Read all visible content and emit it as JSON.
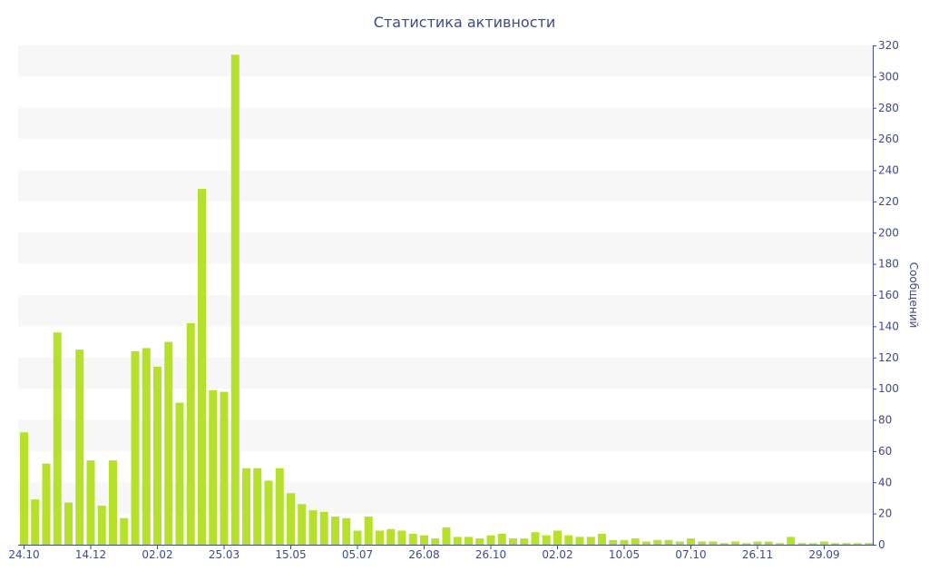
{
  "chart_data": {
    "type": "bar",
    "title": "Статистика активности",
    "xlabel": "",
    "ylabel": "Сообщений",
    "ylim": [
      0,
      320
    ],
    "y_ticks": [
      0,
      20,
      40,
      60,
      80,
      100,
      120,
      140,
      160,
      180,
      200,
      220,
      240,
      260,
      280,
      300,
      320
    ],
    "y_axis_side": "right",
    "grid": "alternating horizontal bands",
    "x_tick_labels": [
      {
        "index": 0,
        "label": "24.10"
      },
      {
        "index": 6,
        "label": "14.12"
      },
      {
        "index": 12,
        "label": "02.02"
      },
      {
        "index": 18,
        "label": "25.03"
      },
      {
        "index": 24,
        "label": "15.05"
      },
      {
        "index": 30,
        "label": "05.07"
      },
      {
        "index": 36,
        "label": "26.08"
      },
      {
        "index": 42,
        "label": "26.10"
      },
      {
        "index": 48,
        "label": "02.02"
      },
      {
        "index": 54,
        "label": "10.05"
      },
      {
        "index": 60,
        "label": "07.10"
      },
      {
        "index": 66,
        "label": "26.11"
      },
      {
        "index": 72,
        "label": "29.09"
      }
    ],
    "values": [
      72,
      29,
      52,
      136,
      27,
      125,
      54,
      25,
      54,
      17,
      124,
      126,
      114,
      130,
      91,
      142,
      228,
      99,
      98,
      314,
      49,
      49,
      41,
      49,
      33,
      26,
      22,
      21,
      18,
      17,
      9,
      18,
      9,
      10,
      9,
      7,
      6,
      4,
      11,
      5,
      5,
      4,
      6,
      7,
      4,
      4,
      8,
      6,
      9,
      6,
      5,
      5,
      7,
      3,
      3,
      4,
      2,
      3,
      3,
      2,
      4,
      2,
      2,
      1,
      2,
      1,
      2,
      2,
      1,
      5,
      1,
      1,
      2,
      1,
      1,
      1,
      1
    ],
    "colors": {
      "bar": "#b5e02c",
      "band": "#f7f7f7",
      "text": "#3d4b87",
      "axis": "#3d4b87"
    }
  }
}
